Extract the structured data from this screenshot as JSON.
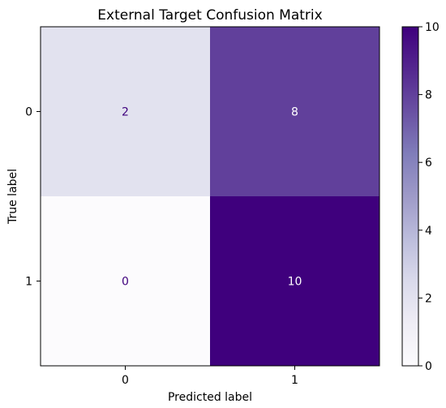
{
  "chart_data": {
    "type": "heatmap",
    "title": "External Target Confusion Matrix",
    "xlabel": "Predicted label",
    "ylabel": "True label",
    "x_categories": [
      "0",
      "1"
    ],
    "y_categories": [
      "0",
      "1"
    ],
    "values": [
      [
        2,
        8
      ],
      [
        0,
        10
      ]
    ],
    "colormap": "Purples",
    "colorbar": {
      "range": [
        0,
        10
      ],
      "ticks": [
        "0",
        "2",
        "4",
        "6",
        "8",
        "10"
      ]
    },
    "grid": false
  }
}
